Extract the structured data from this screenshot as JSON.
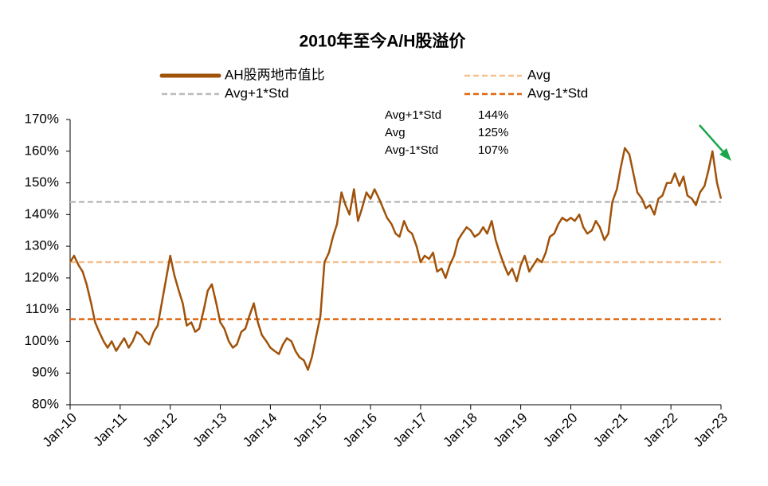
{
  "chart_data": {
    "type": "line",
    "title": "2010年至今A/H股溢价",
    "x": [
      2010,
      2010.08,
      2010.17,
      2010.25,
      2010.33,
      2010.42,
      2010.5,
      2010.58,
      2010.67,
      2010.75,
      2010.83,
      2010.92,
      2011,
      2011.08,
      2011.17,
      2011.25,
      2011.33,
      2011.42,
      2011.5,
      2011.58,
      2011.67,
      2011.75,
      2011.83,
      2011.92,
      2012,
      2012.08,
      2012.17,
      2012.25,
      2012.33,
      2012.42,
      2012.5,
      2012.58,
      2012.67,
      2012.75,
      2012.83,
      2012.92,
      2013,
      2013.08,
      2013.17,
      2013.25,
      2013.33,
      2013.42,
      2013.5,
      2013.58,
      2013.67,
      2013.75,
      2013.83,
      2013.92,
      2014,
      2014.08,
      2014.17,
      2014.25,
      2014.33,
      2014.42,
      2014.5,
      2014.58,
      2014.67,
      2014.75,
      2014.83,
      2014.92,
      2015,
      2015.08,
      2015.17,
      2015.25,
      2015.33,
      2015.42,
      2015.5,
      2015.58,
      2015.67,
      2015.75,
      2015.83,
      2015.92,
      2016,
      2016.08,
      2016.17,
      2016.25,
      2016.33,
      2016.42,
      2016.5,
      2016.58,
      2016.67,
      2016.75,
      2016.83,
      2016.92,
      2017,
      2017.08,
      2017.17,
      2017.25,
      2017.33,
      2017.42,
      2017.5,
      2017.58,
      2017.67,
      2017.75,
      2017.83,
      2017.92,
      2018,
      2018.08,
      2018.17,
      2018.25,
      2018.33,
      2018.42,
      2018.5,
      2018.58,
      2018.67,
      2018.75,
      2018.83,
      2018.92,
      2019,
      2019.08,
      2019.17,
      2019.25,
      2019.33,
      2019.42,
      2019.5,
      2019.58,
      2019.67,
      2019.75,
      2019.83,
      2019.92,
      2020,
      2020.08,
      2020.17,
      2020.25,
      2020.33,
      2020.42,
      2020.5,
      2020.58,
      2020.67,
      2020.75,
      2020.83,
      2020.92,
      2021,
      2021.08,
      2021.17,
      2021.25,
      2021.33,
      2021.42,
      2021.5,
      2021.58,
      2021.67,
      2021.75,
      2021.83,
      2021.92,
      2022,
      2022.08,
      2022.17,
      2022.25,
      2022.33,
      2022.42,
      2022.5,
      2022.58,
      2022.67,
      2022.75,
      2022.83,
      2022.92,
      2023
    ],
    "series": [
      {
        "name": "AH股两地市值比",
        "color": "#a0520a",
        "values": [
          125,
          127,
          124,
          122,
          118,
          112,
          106,
          103,
          100,
          98,
          100,
          97,
          99,
          101,
          98,
          100,
          103,
          102,
          100,
          99,
          103,
          105,
          112,
          120,
          127,
          121,
          116,
          112,
          105,
          106,
          103,
          104,
          110,
          116,
          118,
          112,
          106,
          104,
          100,
          98,
          99,
          103,
          104,
          108,
          112,
          106,
          102,
          100,
          98,
          97,
          96,
          99,
          101,
          100,
          97,
          95,
          94,
          91,
          95,
          102,
          108,
          125,
          128,
          133,
          137,
          147,
          143,
          140,
          148,
          138,
          142,
          147,
          145,
          148,
          145,
          142,
          139,
          137,
          134,
          133,
          138,
          135,
          134,
          130,
          125,
          127,
          126,
          128,
          122,
          123,
          120,
          124,
          127,
          132,
          134,
          136,
          135,
          133,
          134,
          136,
          134,
          138,
          132,
          128,
          124,
          121,
          123,
          119,
          124,
          127,
          122,
          124,
          126,
          125,
          128,
          133,
          134,
          137,
          139,
          138,
          139,
          138,
          140,
          136,
          134,
          135,
          138,
          136,
          132,
          134,
          144,
          148,
          155,
          161,
          159,
          153,
          147,
          145,
          142,
          143,
          140,
          145,
          146,
          150,
          150,
          153,
          149,
          152,
          146,
          145,
          143,
          147,
          149,
          154,
          160,
          150,
          145
        ]
      }
    ],
    "reference_lines": [
      {
        "name": "Avg",
        "value": 125,
        "value_label": "125%",
        "color": "#f5c08e"
      },
      {
        "name": "Avg+1*Std",
        "value": 144,
        "value_label": "144%",
        "color": "#bbbbbb"
      },
      {
        "name": "Avg-1*Std",
        "value": 107,
        "value_label": "107%",
        "color": "#e0650f"
      }
    ],
    "xlim": [
      2010,
      2023
    ],
    "xticks": [
      {
        "value": 2010,
        "label": "Jan-10"
      },
      {
        "value": 2011,
        "label": "Jan-11"
      },
      {
        "value": 2012,
        "label": "Jan-12"
      },
      {
        "value": 2013,
        "label": "Jan-13"
      },
      {
        "value": 2014,
        "label": "Jan-14"
      },
      {
        "value": 2015,
        "label": "Jan-15"
      },
      {
        "value": 2016,
        "label": "Jan-16"
      },
      {
        "value": 2017,
        "label": "Jan-17"
      },
      {
        "value": 2018,
        "label": "Jan-18"
      },
      {
        "value": 2019,
        "label": "Jan-19"
      },
      {
        "value": 2020,
        "label": "Jan-20"
      },
      {
        "value": 2021,
        "label": "Jan-21"
      },
      {
        "value": 2022,
        "label": "Jan-22"
      },
      {
        "value": 2023,
        "label": "Jan-23"
      }
    ],
    "ylim": [
      80,
      170
    ],
    "yticks": [
      {
        "value": 80,
        "label": "80%"
      },
      {
        "value": 90,
        "label": "90%"
      },
      {
        "value": 100,
        "label": "100%"
      },
      {
        "value": 110,
        "label": "110%"
      },
      {
        "value": 120,
        "label": "120%"
      },
      {
        "value": 130,
        "label": "130%"
      },
      {
        "value": 140,
        "label": "140%"
      },
      {
        "value": 150,
        "label": "150%"
      },
      {
        "value": 160,
        "label": "160%"
      },
      {
        "value": 170,
        "label": "170%"
      }
    ]
  }
}
